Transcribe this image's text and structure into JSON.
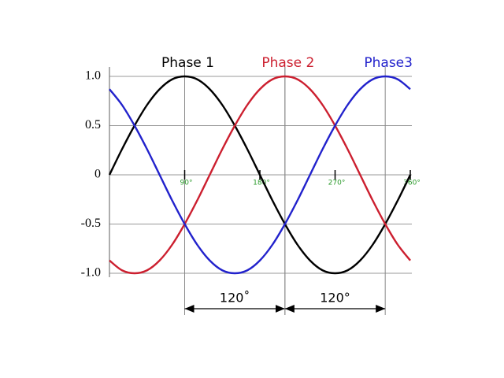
{
  "chart_data": {
    "type": "line",
    "x": [
      0,
      15,
      30,
      45,
      60,
      75,
      90,
      105,
      120,
      135,
      150,
      165,
      180,
      195,
      210,
      225,
      240,
      255,
      270,
      285,
      300,
      315,
      330,
      345,
      360
    ],
    "series": [
      {
        "name": "Phase 1",
        "color": "#000000",
        "values": [
          0,
          0.26,
          0.5,
          0.71,
          0.87,
          0.97,
          1,
          0.97,
          0.87,
          0.71,
          0.5,
          0.26,
          0,
          -0.26,
          -0.5,
          -0.71,
          -0.87,
          -0.97,
          -1,
          -0.97,
          -0.87,
          -0.71,
          -0.5,
          -0.26,
          0
        ]
      },
      {
        "name": "Phase 2",
        "color": "#cc1f2f",
        "values": [
          -0.87,
          -0.97,
          -1,
          -0.97,
          -0.87,
          -0.71,
          -0.5,
          -0.26,
          0,
          0.26,
          0.5,
          0.71,
          0.87,
          0.97,
          1,
          0.97,
          0.87,
          0.71,
          0.5,
          0.26,
          0,
          -0.26,
          -0.5,
          -0.71,
          -0.87
        ]
      },
      {
        "name": "Phase3",
        "color": "#2222cc",
        "values": [
          0.87,
          0.71,
          0.5,
          0.26,
          0,
          -0.26,
          -0.5,
          -0.71,
          -0.87,
          -0.97,
          -1,
          -0.97,
          -0.87,
          -0.71,
          -0.5,
          -0.26,
          0,
          0.26,
          0.5,
          0.71,
          0.87,
          0.97,
          1,
          0.97,
          0.87
        ]
      }
    ],
    "xlim": [
      0,
      360
    ],
    "xticks": [
      {
        "value": 90,
        "label": "90°"
      },
      {
        "value": 180,
        "label": "180°"
      },
      {
        "value": 270,
        "label": "270°"
      },
      {
        "value": 360,
        "label": "360°"
      }
    ],
    "ylim": [
      -1,
      1
    ],
    "yticks": [
      {
        "value": 1,
        "label": "1.0"
      },
      0.5,
      0,
      -0.5,
      {
        "value": -1,
        "label": "-1.0"
      }
    ],
    "grid": true,
    "annotations": [
      {
        "text": "120˚",
        "x": [
          90,
          210
        ]
      },
      {
        "text": "120°",
        "x": [
          210,
          330
        ]
      }
    ]
  }
}
